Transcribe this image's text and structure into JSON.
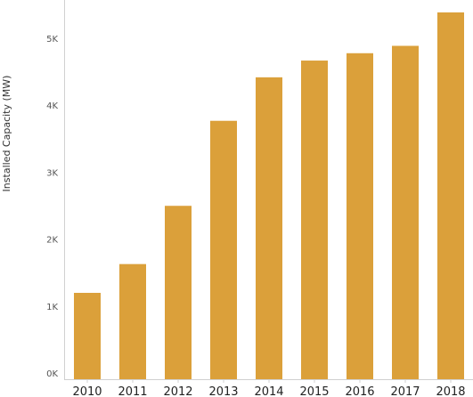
{
  "chart_data": {
    "type": "bar",
    "title": "",
    "xlabel": "",
    "ylabel": "Installed Capacity (MW)",
    "categories": [
      "2010",
      "2011",
      "2012",
      "2013",
      "2014",
      "2015",
      "2016",
      "2017",
      "2018"
    ],
    "values": [
      1290,
      1720,
      2590,
      3860,
      4510,
      4760,
      4870,
      4980,
      5480
    ],
    "ylim": [
      0,
      5600
    ],
    "yticks": [
      0,
      1000,
      2000,
      3000,
      4000,
      5000
    ],
    "ytick_labels": [
      "0K",
      "1K",
      "2K",
      "3K",
      "4K",
      "5K"
    ],
    "grid": false,
    "bar_color": "#DBA03A",
    "axis_color": "#D0D0D0"
  }
}
